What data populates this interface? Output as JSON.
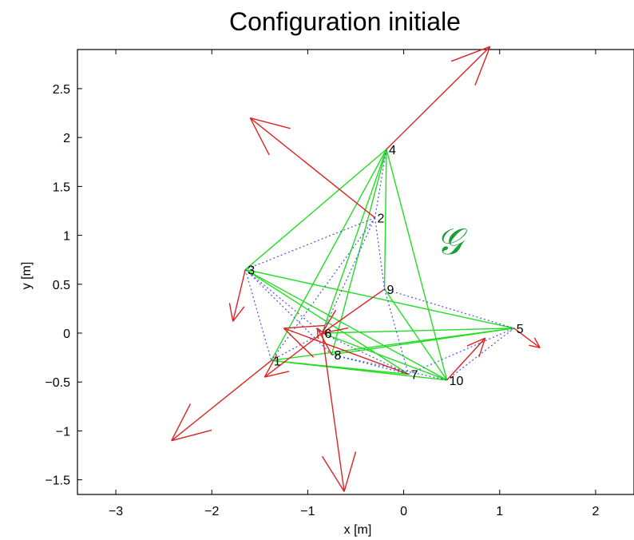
{
  "chart_data": {
    "type": "scatter",
    "title": "Configuration initiale",
    "xlabel": "x [m]",
    "ylabel": "y [m]",
    "xlim": [
      -3.4,
      2.4
    ],
    "ylim": [
      -1.65,
      2.9
    ],
    "xticks": [
      "−3",
      "−2",
      "−1",
      "0",
      "1",
      "2"
    ],
    "xtick_values": [
      -3,
      -2,
      -1,
      0,
      1,
      2
    ],
    "yticks": [
      "−1.5",
      "−1",
      "−0.5",
      "0",
      "0.5",
      "1",
      "1.5",
      "2",
      "2.5"
    ],
    "ytick_values": [
      -1.5,
      -1,
      -0.5,
      0,
      0.5,
      1,
      1.5,
      2,
      2.5
    ],
    "grid": false,
    "graph_label": "𝒢",
    "nodes": [
      {
        "id": "1",
        "x": -1.38,
        "y": -0.28
      },
      {
        "id": "2",
        "x": -0.3,
        "y": 1.18
      },
      {
        "id": "3",
        "x": -1.65,
        "y": 0.65
      },
      {
        "id": "4",
        "x": -0.18,
        "y": 1.88
      },
      {
        "id": "5",
        "x": 1.15,
        "y": 0.05
      },
      {
        "id": "6",
        "x": -0.85,
        "y": 0.0
      },
      {
        "id": "7",
        "x": 0.05,
        "y": -0.42
      },
      {
        "id": "8",
        "x": -0.75,
        "y": -0.22
      },
      {
        "id": "9",
        "x": -0.2,
        "y": 0.45
      },
      {
        "id": "10",
        "x": 0.45,
        "y": -0.48
      }
    ],
    "green_edges": [
      [
        "4",
        "3"
      ],
      [
        "4",
        "1"
      ],
      [
        "4",
        "6"
      ],
      [
        "4",
        "8"
      ],
      [
        "4",
        "9"
      ],
      [
        "4",
        "10"
      ],
      [
        "3",
        "7"
      ],
      [
        "3",
        "5"
      ],
      [
        "3",
        "10"
      ],
      [
        "1",
        "5"
      ],
      [
        "6",
        "5"
      ],
      [
        "8",
        "5"
      ],
      [
        "9",
        "10"
      ],
      [
        "6",
        "10"
      ],
      [
        "1",
        "10"
      ],
      [
        "1",
        "7"
      ]
    ],
    "blue_dotted_edges": [
      [
        "2",
        "3"
      ],
      [
        "2",
        "1"
      ],
      [
        "2",
        "6"
      ],
      [
        "2",
        "9"
      ],
      [
        "4",
        "2"
      ],
      [
        "3",
        "1"
      ],
      [
        "3",
        "8"
      ],
      [
        "3",
        "6"
      ],
      [
        "9",
        "7"
      ],
      [
        "9",
        "5"
      ],
      [
        "8",
        "7"
      ],
      [
        "6",
        "7"
      ],
      [
        "7",
        "5"
      ],
      [
        "10",
        "5"
      ],
      [
        "1",
        "6"
      ],
      [
        "8",
        "10"
      ]
    ],
    "red_vectors": [
      {
        "from": [
          -0.3,
          1.18
        ],
        "to": [
          -1.6,
          2.2
        ]
      },
      {
        "from": [
          -0.18,
          1.88
        ],
        "to": [
          0.9,
          2.93
        ]
      },
      {
        "from": [
          -1.65,
          0.65
        ],
        "to": [
          -1.78,
          0.12
        ]
      },
      {
        "from": [
          -1.38,
          -0.28
        ],
        "to": [
          -2.42,
          -1.1
        ]
      },
      {
        "from": [
          1.15,
          0.05
        ],
        "to": [
          1.42,
          -0.15
        ]
      },
      {
        "from": [
          -0.85,
          0.0
        ],
        "to": [
          -0.62,
          -1.62
        ]
      },
      {
        "from": [
          -0.85,
          0.0
        ],
        "to": [
          -1.45,
          -0.45
        ]
      },
      {
        "from": [
          0.05,
          -0.42
        ],
        "to": [
          -1.25,
          0.05
        ]
      },
      {
        "from": [
          -0.75,
          -0.22
        ],
        "to": [
          -0.9,
          0.05
        ]
      },
      {
        "from": [
          -0.2,
          0.45
        ],
        "to": [
          -0.85,
          0.0
        ]
      },
      {
        "from": [
          0.45,
          -0.48
        ],
        "to": [
          0.85,
          -0.05
        ]
      }
    ],
    "colors": {
      "green_edge": "#22dd22",
      "blue_edge": "#4455dd",
      "red_vector": "#dd2222",
      "graph_label": "#1a9c3a",
      "axis": "#000000"
    }
  }
}
